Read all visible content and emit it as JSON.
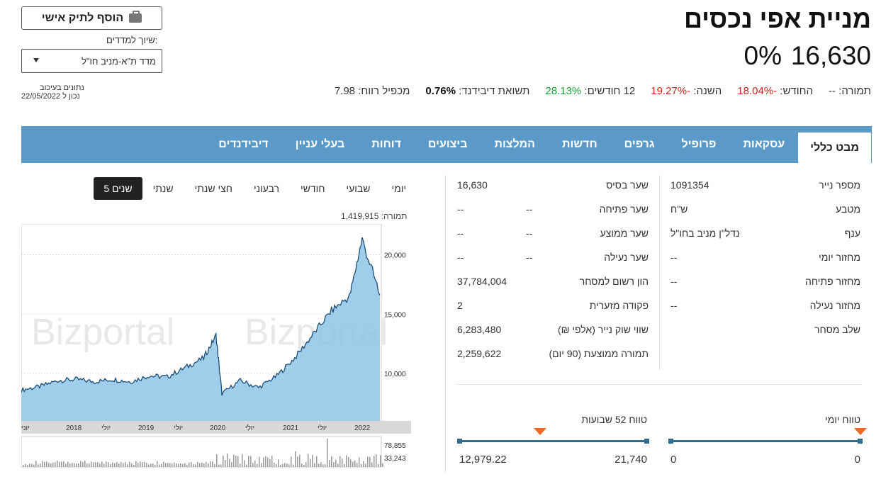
{
  "header": {
    "title": "מניית אפי נכסים",
    "price": "16,630",
    "change": "0%",
    "add_button": "הוסף לתיק אישי",
    "index_label": "שיוך למדדים:",
    "index_value": "מדד ת\"א-מניב חו\"ל",
    "data_note1": "נתונים בעיכוב",
    "data_note2": "נכון ל 22/05/2022"
  },
  "stats": [
    {
      "label": "תמורה:",
      "value": "--",
      "tone": "plain"
    },
    {
      "label": "החודש:",
      "value": "-18.04%",
      "tone": "neg"
    },
    {
      "label": "השנה:",
      "value": "-19.27%",
      "tone": "neg"
    },
    {
      "label": "12 חודשים:",
      "value": "28.13%",
      "tone": "pos"
    },
    {
      "label": "תשואת דיבידנד:",
      "value": "0.76%",
      "tone": "bold"
    },
    {
      "label": "מכפיל רווח:",
      "value": "7.98",
      "tone": "plain"
    }
  ],
  "tabs": [
    "מבט כללי",
    "עסקאות",
    "פרופיל",
    "גרפים",
    "חדשות",
    "המלצות",
    "ביצועים",
    "דוחות",
    "בעלי עניין",
    "דיבידנדים"
  ],
  "info_right": [
    {
      "label": "מספר נייר",
      "value": "1091354"
    },
    {
      "label": "מטבע",
      "value": "ש\"ח"
    },
    {
      "label": "ענף",
      "value": "נדל\"ן מניב בחו\"ל"
    },
    {
      "label": "מחזור יומי",
      "value": "--"
    },
    {
      "label": "מחזור פתיחה",
      "value": "--"
    },
    {
      "label": "מחזור נעילה",
      "value": "--"
    },
    {
      "label": "שלב מסחר",
      "value": ""
    }
  ],
  "info_left": [
    {
      "label": "שער בסיס",
      "value": "16,630"
    },
    {
      "label": "שער פתיחה",
      "value": "--"
    },
    {
      "label": "שער ממוצע",
      "value": "--"
    },
    {
      "label": "שער נעילה",
      "value": "--"
    },
    {
      "label": "הון רשום למסחר",
      "value": "37,784,004"
    },
    {
      "label": "פקודה מזערית",
      "value": "2"
    },
    {
      "label": "שווי שוק נייר (אלפי ₪)",
      "value": "6,283,480"
    },
    {
      "label": "תמורה ממוצעת (90 יום)",
      "value": "2,259,622"
    }
  ],
  "ranges": {
    "daily": {
      "title": "טווח יומי",
      "low": "0",
      "high": "0",
      "position": 0.0
    },
    "weekly52": {
      "title": "טווח 52 שבועות",
      "low": "12,979.22",
      "high": "21,740",
      "position": 0.57
    }
  },
  "periods": [
    "יומי",
    "שבועי",
    "חודשי",
    "רבעוני",
    "חצי שנתי",
    "שנתי",
    "5 שנים"
  ],
  "active_period": "5 שנים",
  "volume_label": "תמורה: 1,419,915",
  "chart_data": {
    "type": "area",
    "watermark": "Bizportal",
    "y_ticks": [
      "20,000",
      "15,000",
      "10,000"
    ],
    "x_ticks": [
      "יוני",
      "2018",
      "יולי",
      "2019",
      "יולי",
      "2020",
      "יולי",
      "2021",
      "יולי",
      "2022"
    ],
    "ylim": [
      6000,
      22000
    ],
    "series": [
      {
        "values": [
          {
            "x": "2017-06",
            "y": 8600
          },
          {
            "x": "2017-09",
            "y": 8900
          },
          {
            "x": "2017-12",
            "y": 9400
          },
          {
            "x": "2018-03",
            "y": 9500
          },
          {
            "x": "2018-06",
            "y": 9300
          },
          {
            "x": "2018-09",
            "y": 9500
          },
          {
            "x": "2018-12",
            "y": 9300
          },
          {
            "x": "2019-03",
            "y": 9800
          },
          {
            "x": "2019-06",
            "y": 9700
          },
          {
            "x": "2019-09",
            "y": 10500
          },
          {
            "x": "2019-12",
            "y": 11300
          },
          {
            "x": "2020-02",
            "y": 13200
          },
          {
            "x": "2020-03",
            "y": 8300
          },
          {
            "x": "2020-06",
            "y": 9400
          },
          {
            "x": "2020-09",
            "y": 8800
          },
          {
            "x": "2020-12",
            "y": 9800
          },
          {
            "x": "2021-03",
            "y": 11300
          },
          {
            "x": "2021-06",
            "y": 13300
          },
          {
            "x": "2021-09",
            "y": 15300
          },
          {
            "x": "2021-12",
            "y": 16500
          },
          {
            "x": "2022-02",
            "y": 21300
          },
          {
            "x": "2022-05",
            "y": 16600
          }
        ]
      }
    ],
    "volume_ticks": [
      "78,855",
      "33,243"
    ]
  }
}
